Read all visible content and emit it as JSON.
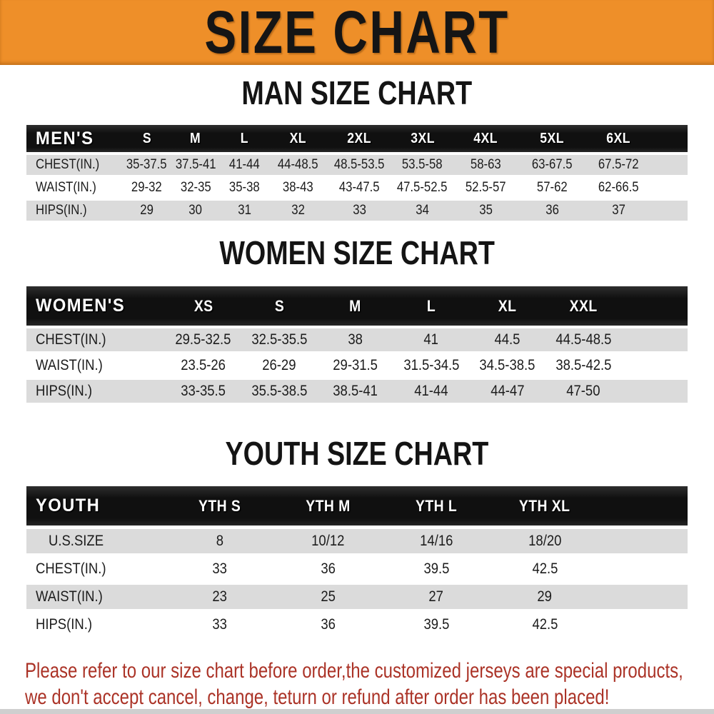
{
  "banner": {
    "title": "SIZE CHART"
  },
  "colors": {
    "banner_bg": "#EE8F29",
    "header_bg": "#101010",
    "row_alt": "#DBDBDB",
    "footer_text": "#AB3327"
  },
  "sections": [
    {
      "heading": "MAN SIZE CHART",
      "table": {
        "label": "MEN'S",
        "sizes": [
          "S",
          "M",
          "L",
          "XL",
          "2XL",
          "3XL",
          "4XL",
          "5XL",
          "6XL"
        ],
        "rows": [
          {
            "label": "CHEST(IN.)",
            "values": [
              "35-37.5",
              "37.5-41",
              "41-44",
              "44-48.5",
              "48.5-53.5",
              "53.5-58",
              "58-63",
              "63-67.5",
              "67.5-72"
            ]
          },
          {
            "label": "WAIST(IN.)",
            "values": [
              "29-32",
              "32-35",
              "35-38",
              "38-43",
              "43-47.5",
              "47.5-52.5",
              "52.5-57",
              "57-62",
              "62-66.5"
            ]
          },
          {
            "label": "HIPS(IN.)",
            "values": [
              "29",
              "30",
              "31",
              "32",
              "33",
              "34",
              "35",
              "36",
              "37"
            ]
          }
        ]
      }
    },
    {
      "heading": "WOMEN SIZE CHART",
      "table": {
        "label": "WOMEN'S",
        "sizes": [
          "XS",
          "S",
          "M",
          "L",
          "XL",
          "XXL"
        ],
        "rows": [
          {
            "label": "CHEST(IN.)",
            "values": [
              "29.5-32.5",
              "32.5-35.5",
              "38",
              "41",
              "44.5",
              "44.5-48.5"
            ]
          },
          {
            "label": "WAIST(IN.)",
            "values": [
              "23.5-26",
              "26-29",
              "29-31.5",
              "31.5-34.5",
              "34.5-38.5",
              "38.5-42.5"
            ]
          },
          {
            "label": "HIPS(IN.)",
            "values": [
              "33-35.5",
              "35.5-38.5",
              "38.5-41",
              "41-44",
              "44-47",
              "47-50"
            ]
          }
        ]
      }
    },
    {
      "heading": "YOUTH SIZE CHART",
      "table": {
        "label": "YOUTH",
        "sizes": [
          "YTH S",
          "YTH M",
          "YTH L",
          "YTH XL"
        ],
        "rows": [
          {
            "label": "U.S.SIZE",
            "values": [
              "8",
              "10/12",
              "14/16",
              "18/20"
            ]
          },
          {
            "label": "CHEST(IN.)",
            "values": [
              "33",
              "36",
              "39.5",
              "42.5"
            ]
          },
          {
            "label": "WAIST(IN.)",
            "values": [
              "23",
              "25",
              "27",
              "29"
            ]
          },
          {
            "label": "HIPS(IN.)",
            "values": [
              "33",
              "36",
              "39.5",
              "42.5"
            ]
          }
        ]
      }
    }
  ],
  "footer": {
    "lines": [
      "Please refer to our size chart before order,the customized jerseys are special products,",
      "we don't accept cancel, change, teturn or refund after order has been placed!"
    ]
  }
}
